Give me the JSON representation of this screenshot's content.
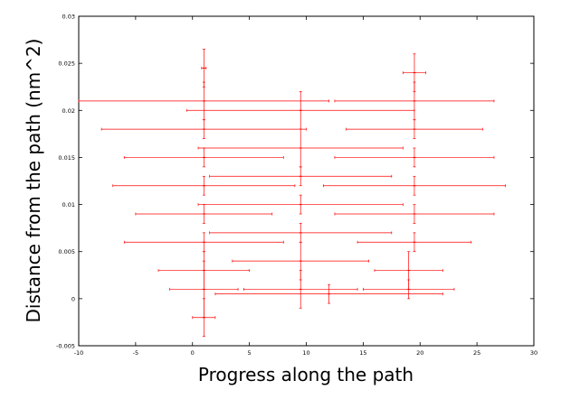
{
  "chart_data": {
    "type": "scatter",
    "title": "",
    "xlabel": "Progress along the path",
    "ylabel": "Distance from the path (nm^2)",
    "xlim": [
      -10,
      30
    ],
    "ylim": [
      -0.005,
      0.03
    ],
    "x_ticks": [
      -10,
      -5,
      0,
      5,
      10,
      15,
      20,
      25,
      30
    ],
    "x_tick_labels": [
      "-10",
      "-5",
      "0",
      "5",
      "10",
      "15",
      "20",
      "25",
      "30"
    ],
    "y_ticks": [
      -0.005,
      0,
      0.005,
      0.01,
      0.015,
      0.02,
      0.025,
      0.03
    ],
    "y_tick_labels": [
      "-0.005",
      "0",
      "0.005",
      "0.01",
      "0.015",
      "0.02",
      "0.025",
      "0.03"
    ],
    "grid": false,
    "legend": "none",
    "color": "#ff0000",
    "series": [
      {
        "error_bars": "x and y",
        "points": [
          {
            "x": 1.0,
            "y": 0.0245,
            "xerr": 0.2,
            "yerr": 0.002
          },
          {
            "x": 1.0,
            "y": 0.021,
            "xerr": 11,
            "yerr": 0.002
          },
          {
            "x": 1.0,
            "y": 0.018,
            "xerr": 9,
            "yerr": 0.001
          },
          {
            "x": 1.0,
            "y": 0.015,
            "xerr": 7,
            "yerr": 0.001
          },
          {
            "x": 1.0,
            "y": 0.012,
            "xerr": 8,
            "yerr": 0.001
          },
          {
            "x": 1.0,
            "y": 0.009,
            "xerr": 6,
            "yerr": 0.001
          },
          {
            "x": 1.0,
            "y": 0.006,
            "xerr": 7,
            "yerr": 0.001
          },
          {
            "x": 1.0,
            "y": 0.003,
            "xerr": 4,
            "yerr": 0.002
          },
          {
            "x": 1.0,
            "y": 0.001,
            "xerr": 3,
            "yerr": 0.003
          },
          {
            "x": 1.0,
            "y": -0.002,
            "xerr": 1,
            "yerr": 0.002
          },
          {
            "x": 9.5,
            "y": 0.02,
            "xerr": 10,
            "yerr": 0.002
          },
          {
            "x": 9.5,
            "y": 0.016,
            "xerr": 9,
            "yerr": 0.002
          },
          {
            "x": 9.5,
            "y": 0.013,
            "xerr": 8,
            "yerr": 0.001
          },
          {
            "x": 9.5,
            "y": 0.01,
            "xerr": 9,
            "yerr": 0.001
          },
          {
            "x": 9.5,
            "y": 0.007,
            "xerr": 8,
            "yerr": 0.001
          },
          {
            "x": 9.5,
            "y": 0.004,
            "xerr": 6,
            "yerr": 0.002
          },
          {
            "x": 9.5,
            "y": 0.001,
            "xerr": 5,
            "yerr": 0.002
          },
          {
            "x": 19.5,
            "y": 0.024,
            "xerr": 1,
            "yerr": 0.002
          },
          {
            "x": 19.5,
            "y": 0.021,
            "xerr": 7,
            "yerr": 0.002
          },
          {
            "x": 19.5,
            "y": 0.018,
            "xerr": 6,
            "yerr": 0.001
          },
          {
            "x": 19.5,
            "y": 0.015,
            "xerr": 7,
            "yerr": 0.001
          },
          {
            "x": 19.5,
            "y": 0.012,
            "xerr": 8,
            "yerr": 0.001
          },
          {
            "x": 19.5,
            "y": 0.009,
            "xerr": 7,
            "yerr": 0.001
          },
          {
            "x": 19.5,
            "y": 0.006,
            "xerr": 5,
            "yerr": 0.001
          },
          {
            "x": 19.0,
            "y": 0.003,
            "xerr": 3,
            "yerr": 0.002
          },
          {
            "x": 19.0,
            "y": 0.001,
            "xerr": 4,
            "yerr": 0.001
          },
          {
            "x": 12.0,
            "y": 0.0005,
            "xerr": 10,
            "yerr": 0.001
          }
        ]
      }
    ]
  }
}
